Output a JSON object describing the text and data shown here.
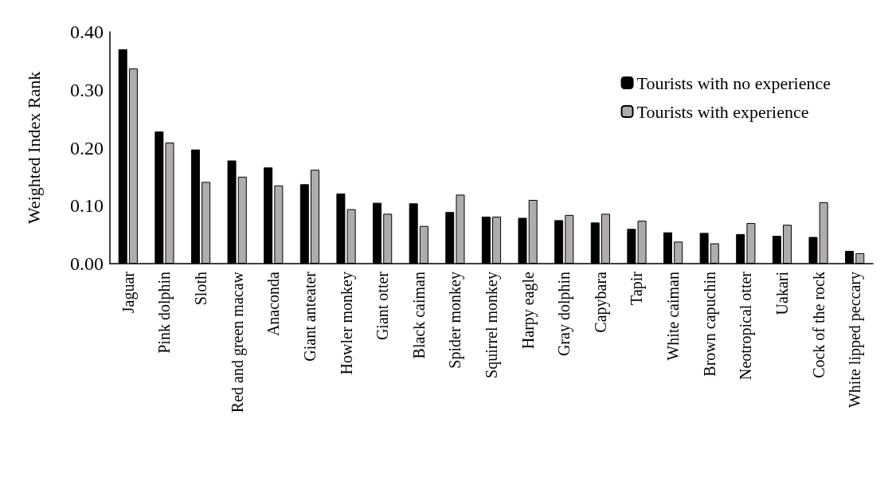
{
  "chart_data": {
    "type": "bar",
    "ylabel": "Weighted Index Rank",
    "categories": [
      "Jaguar",
      "Pink dolphin",
      "Sloth",
      "Red and green macaw",
      "Anaconda",
      "Giant anteater",
      "Howler monkey",
      "Giant otter",
      "Black caiman",
      "Spider monkey",
      "Squirrel monkey",
      "Harpy eagle",
      "Gray dolphin",
      "Capybara",
      "Tapir",
      "White caiman",
      "Brown capuchin",
      "Neotropical otter",
      "Uakari",
      "Cock of the rock",
      "White lipped peccary"
    ],
    "series": [
      {
        "name": "Tourists with no experience",
        "color": "#000000",
        "values": [
          0.37,
          0.228,
          0.197,
          0.178,
          0.166,
          0.137,
          0.121,
          0.105,
          0.104,
          0.089,
          0.081,
          0.079,
          0.075,
          0.071,
          0.06,
          0.054,
          0.053,
          0.051,
          0.048,
          0.046,
          0.022
        ]
      },
      {
        "name": "Tourists with experience",
        "color": "#b0acab",
        "values": [
          0.337,
          0.209,
          0.141,
          0.15,
          0.135,
          0.162,
          0.094,
          0.086,
          0.065,
          0.119,
          0.081,
          0.11,
          0.084,
          0.086,
          0.074,
          0.038,
          0.035,
          0.07,
          0.067,
          0.106,
          0.018
        ]
      }
    ],
    "ylim": [
      0,
      0.4
    ],
    "yticks": [
      {
        "value": 0,
        "label": "0.00"
      },
      {
        "value": 0.1,
        "label": "0.10"
      },
      {
        "value": 0.2,
        "label": "0.20"
      },
      {
        "value": 0.3,
        "label": "0.30"
      },
      {
        "value": 0.4,
        "label": "0.40"
      }
    ],
    "grid": false,
    "legend": "top right"
  }
}
